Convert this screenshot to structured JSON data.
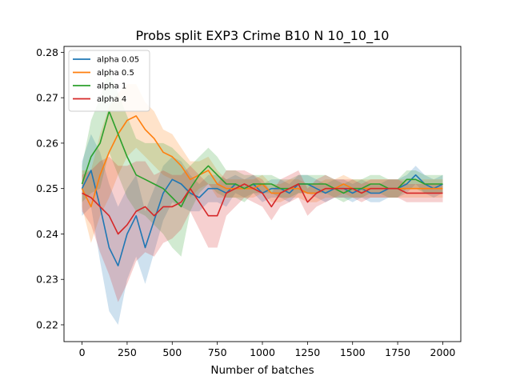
{
  "chart_data": {
    "type": "line",
    "title": "Probs split EXP3 Crime B10 N 10_10_10",
    "xlabel": "Number of batches",
    "ylabel": "",
    "xlim": [
      -100,
      2100
    ],
    "ylim": [
      0.2163,
      0.2813
    ],
    "xticks": [
      0,
      250,
      500,
      750,
      1000,
      1250,
      1500,
      1750,
      2000
    ],
    "xtick_labels": [
      "0",
      "250",
      "500",
      "750",
      "1000",
      "1250",
      "1500",
      "1750",
      "2000"
    ],
    "yticks": [
      0.22,
      0.23,
      0.24,
      0.25,
      0.26,
      0.27,
      0.28
    ],
    "ytick_labels": [
      "0.22",
      "0.23",
      "0.24",
      "0.25",
      "0.26",
      "0.27",
      "0.28"
    ],
    "grid": false,
    "legend_placement": "upper-left",
    "shaded_band": "mean ± spread per series",
    "series": [
      {
        "name": "alpha 0.05",
        "color": "#1f77b4",
        "x": [
          0,
          50,
          100,
          150,
          200,
          250,
          300,
          350,
          400,
          450,
          500,
          550,
          600,
          650,
          700,
          750,
          800,
          850,
          900,
          950,
          1000,
          1050,
          1100,
          1150,
          1200,
          1250,
          1300,
          1350,
          1400,
          1450,
          1500,
          1550,
          1600,
          1650,
          1700,
          1750,
          1800,
          1850,
          1900,
          1950,
          2000
        ],
        "values": [
          0.25,
          0.254,
          0.246,
          0.237,
          0.233,
          0.24,
          0.244,
          0.237,
          0.243,
          0.249,
          0.252,
          0.251,
          0.249,
          0.248,
          0.25,
          0.25,
          0.249,
          0.251,
          0.25,
          0.251,
          0.249,
          0.25,
          0.25,
          0.249,
          0.251,
          0.251,
          0.25,
          0.249,
          0.25,
          0.25,
          0.249,
          0.25,
          0.249,
          0.249,
          0.25,
          0.25,
          0.251,
          0.253,
          0.251,
          0.25,
          0.251
        ],
        "band": [
          0.006,
          0.008,
          0.012,
          0.014,
          0.013,
          0.01,
          0.009,
          0.008,
          0.007,
          0.006,
          0.005,
          0.005,
          0.004,
          0.003,
          0.003,
          0.003,
          0.003,
          0.002,
          0.002,
          0.002,
          0.002,
          0.002,
          0.002,
          0.002,
          0.002,
          0.002,
          0.002,
          0.002,
          0.002,
          0.002,
          0.002,
          0.002,
          0.002,
          0.002,
          0.002,
          0.002,
          0.002,
          0.002,
          0.002,
          0.002,
          0.002
        ]
      },
      {
        "name": "alpha 0.5",
        "color": "#ff7f0e",
        "x": [
          0,
          50,
          100,
          150,
          200,
          250,
          300,
          350,
          400,
          450,
          500,
          550,
          600,
          650,
          700,
          750,
          800,
          850,
          900,
          950,
          1000,
          1050,
          1100,
          1150,
          1200,
          1250,
          1300,
          1350,
          1400,
          1450,
          1500,
          1550,
          1600,
          1650,
          1700,
          1750,
          1800,
          1850,
          1900,
          1950,
          2000
        ],
        "values": [
          0.25,
          0.246,
          0.253,
          0.258,
          0.262,
          0.265,
          0.266,
          0.263,
          0.261,
          0.258,
          0.257,
          0.255,
          0.252,
          0.253,
          0.254,
          0.251,
          0.25,
          0.25,
          0.25,
          0.25,
          0.251,
          0.249,
          0.249,
          0.25,
          0.25,
          0.249,
          0.249,
          0.25,
          0.25,
          0.251,
          0.25,
          0.25,
          0.25,
          0.25,
          0.25,
          0.25,
          0.25,
          0.25,
          0.25,
          0.25,
          0.25
        ],
        "band": [
          0.004,
          0.008,
          0.009,
          0.01,
          0.009,
          0.008,
          0.007,
          0.006,
          0.006,
          0.005,
          0.005,
          0.004,
          0.004,
          0.003,
          0.003,
          0.003,
          0.002,
          0.002,
          0.002,
          0.002,
          0.002,
          0.002,
          0.002,
          0.002,
          0.002,
          0.002,
          0.002,
          0.002,
          0.002,
          0.002,
          0.002,
          0.002,
          0.002,
          0.002,
          0.002,
          0.002,
          0.002,
          0.002,
          0.002,
          0.002,
          0.002
        ]
      },
      {
        "name": "alpha 1",
        "color": "#2ca02c",
        "x": [
          0,
          50,
          100,
          150,
          200,
          250,
          300,
          350,
          400,
          450,
          500,
          550,
          600,
          650,
          700,
          750,
          800,
          850,
          900,
          950,
          1000,
          1050,
          1100,
          1150,
          1200,
          1250,
          1300,
          1350,
          1400,
          1450,
          1500,
          1550,
          1600,
          1650,
          1700,
          1750,
          1800,
          1850,
          1900,
          1950,
          2000
        ],
        "values": [
          0.251,
          0.257,
          0.26,
          0.267,
          0.262,
          0.257,
          0.253,
          0.252,
          0.251,
          0.25,
          0.248,
          0.246,
          0.25,
          0.253,
          0.255,
          0.253,
          0.251,
          0.251,
          0.25,
          0.251,
          0.251,
          0.251,
          0.25,
          0.25,
          0.251,
          0.251,
          0.251,
          0.251,
          0.25,
          0.249,
          0.25,
          0.25,
          0.251,
          0.251,
          0.25,
          0.25,
          0.252,
          0.252,
          0.251,
          0.251,
          0.251
        ],
        "band": [
          0.004,
          0.008,
          0.01,
          0.009,
          0.009,
          0.009,
          0.008,
          0.008,
          0.009,
          0.01,
          0.011,
          0.011,
          0.005,
          0.004,
          0.004,
          0.004,
          0.003,
          0.003,
          0.003,
          0.002,
          0.002,
          0.002,
          0.002,
          0.002,
          0.002,
          0.002,
          0.002,
          0.002,
          0.002,
          0.002,
          0.002,
          0.002,
          0.002,
          0.002,
          0.002,
          0.002,
          0.002,
          0.002,
          0.002,
          0.002,
          0.002
        ]
      },
      {
        "name": "alpha 4",
        "color": "#d62728",
        "x": [
          0,
          50,
          100,
          150,
          200,
          250,
          300,
          350,
          400,
          450,
          500,
          550,
          600,
          650,
          700,
          750,
          800,
          850,
          900,
          950,
          1000,
          1050,
          1100,
          1150,
          1200,
          1250,
          1300,
          1350,
          1400,
          1450,
          1500,
          1550,
          1600,
          1650,
          1700,
          1750,
          1800,
          1850,
          1900,
          1950,
          2000
        ],
        "values": [
          0.249,
          0.248,
          0.246,
          0.244,
          0.24,
          0.242,
          0.245,
          0.246,
          0.244,
          0.246,
          0.246,
          0.247,
          0.25,
          0.247,
          0.244,
          0.244,
          0.249,
          0.25,
          0.251,
          0.25,
          0.249,
          0.246,
          0.249,
          0.25,
          0.251,
          0.247,
          0.249,
          0.25,
          0.25,
          0.25,
          0.25,
          0.249,
          0.25,
          0.25,
          0.25,
          0.25,
          0.249,
          0.249,
          0.249,
          0.249,
          0.249
        ],
        "band": [
          0.004,
          0.006,
          0.01,
          0.013,
          0.015,
          0.013,
          0.011,
          0.01,
          0.009,
          0.008,
          0.007,
          0.006,
          0.005,
          0.006,
          0.007,
          0.007,
          0.005,
          0.004,
          0.003,
          0.003,
          0.003,
          0.003,
          0.003,
          0.003,
          0.003,
          0.003,
          0.003,
          0.003,
          0.002,
          0.002,
          0.002,
          0.002,
          0.002,
          0.002,
          0.002,
          0.002,
          0.002,
          0.002,
          0.002,
          0.002,
          0.002
        ]
      }
    ]
  }
}
